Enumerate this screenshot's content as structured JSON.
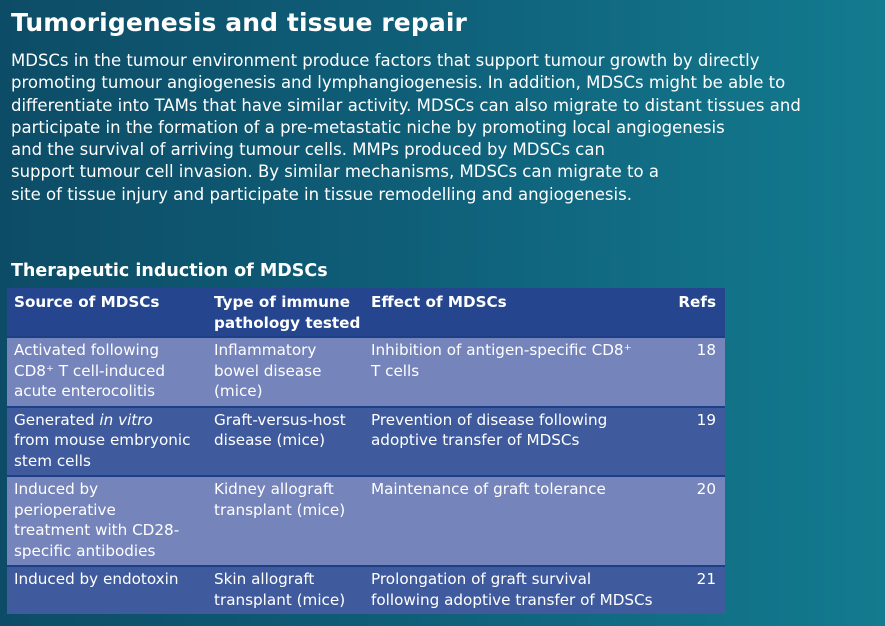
{
  "title": "Tumorigenesis and tissue repair",
  "paragraph_lines": [
    "MDSCs in the tumour environment produce factors that support tumour growth by directly",
    "promoting tumour angiogenesis and lymphangiogenesis. In addition, MDSCs might be able to",
    "differentiate into TAMs that have similar activity. MDSCs can also migrate to distant tissues and",
    "participate in the formation of a pre-metastatic niche by promoting local angiogenesis",
    "and the survival of arriving tumour cells. MMPs produced by MDSCs can",
    "support tumour cell invasion. By similar mechanisms, MDSCs can migrate to a",
    "site of tissue injury and participate in tissue remodelling and angiogenesis."
  ],
  "table_title": "Therapeutic induction of MDSCs",
  "table": {
    "headers": {
      "source": "Source of MDSCs",
      "type_line1": "Type of immune",
      "type_line2": "pathology tested",
      "effect": "Effect of MDSCs",
      "refs": "Refs"
    },
    "rows": [
      {
        "source": [
          "Activated following",
          "CD8⁺ T cell-induced",
          "acute enterocolitis"
        ],
        "type": [
          "Inflammatory",
          "bowel disease",
          "(mice)"
        ],
        "effect": [
          "Inhibition of antigen-specific CD8⁺",
          "T cells"
        ],
        "refs": "18"
      },
      {
        "source_prefix": "Generated ",
        "source_italic": "in vitro",
        "source": [
          "from mouse embryonic",
          "stem cells"
        ],
        "type": [
          "Graft-versus-host",
          "disease (mice)"
        ],
        "effect": [
          "Prevention of disease following",
          "adoptive transfer of MDSCs"
        ],
        "refs": "19"
      },
      {
        "source": [
          "Induced by",
          "perioperative",
          "treatment with CD28-",
          "specific antibodies"
        ],
        "type": [
          "Kidney allograft",
          "transplant (mice)"
        ],
        "effect": [
          "Maintenance of graft tolerance"
        ],
        "refs": "20"
      },
      {
        "source": [
          "Induced by endotoxin"
        ],
        "type": [
          "Skin allograft",
          "transplant (mice)"
        ],
        "effect": [
          "Prolongation of graft survival",
          "following adoptive transfer of MDSCs"
        ],
        "refs": "21"
      }
    ]
  }
}
